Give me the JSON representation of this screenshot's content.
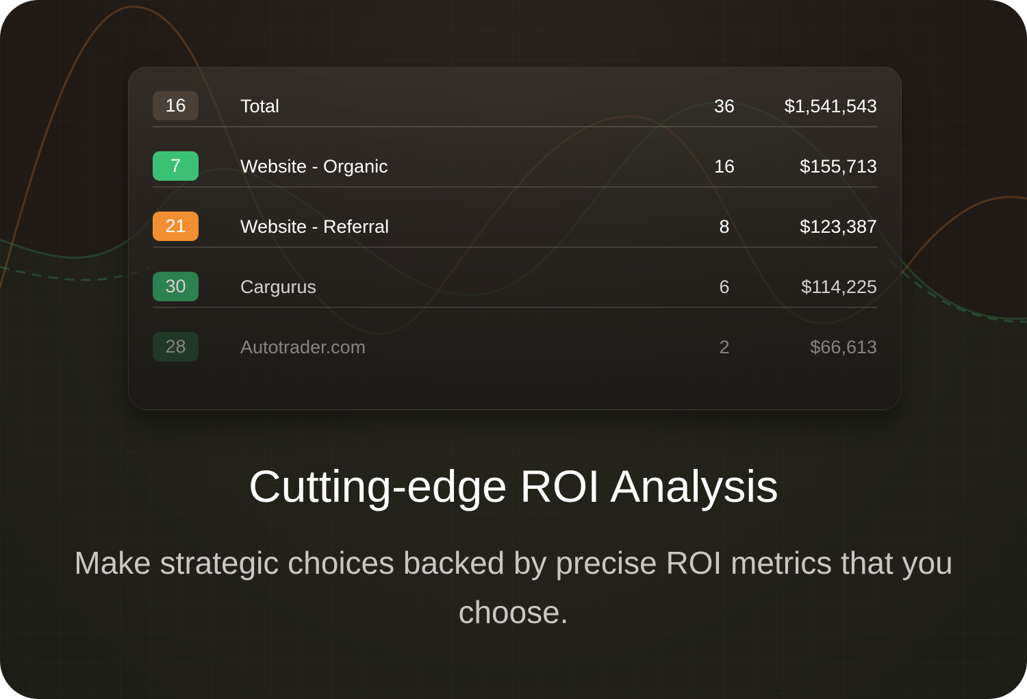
{
  "table": {
    "rows": [
      {
        "badge": "16",
        "badge_color": "#4a4038",
        "name": "Total",
        "count": "36",
        "value": "$1,541,543",
        "opacity": 1
      },
      {
        "badge": "7",
        "badge_color": "#3cc174",
        "name": "Website - Organic",
        "count": "16",
        "value": "$155,713",
        "opacity": 1
      },
      {
        "badge": "21",
        "badge_color": "#f28f33",
        "name": "Website - Referral",
        "count": "8",
        "value": "$123,387",
        "opacity": 1
      },
      {
        "badge": "30",
        "badge_color": "#2e9a5c",
        "name": "Cargurus",
        "count": "6",
        "value": "$114,225",
        "opacity": 0.8
      },
      {
        "badge": "28",
        "badge_color": "#1f5a39",
        "name": "Autotrader.com",
        "count": "2",
        "value": "$66,613",
        "opacity": 0.45
      }
    ]
  },
  "headline": {
    "title": "Cutting-edge ROI Analysis",
    "subtitle": "Make strategic choices backed by precise ROI metrics that you choose."
  },
  "colors": {
    "accent_orange": "#f28f33",
    "accent_green": "#3cc174",
    "background": "#221c18"
  }
}
